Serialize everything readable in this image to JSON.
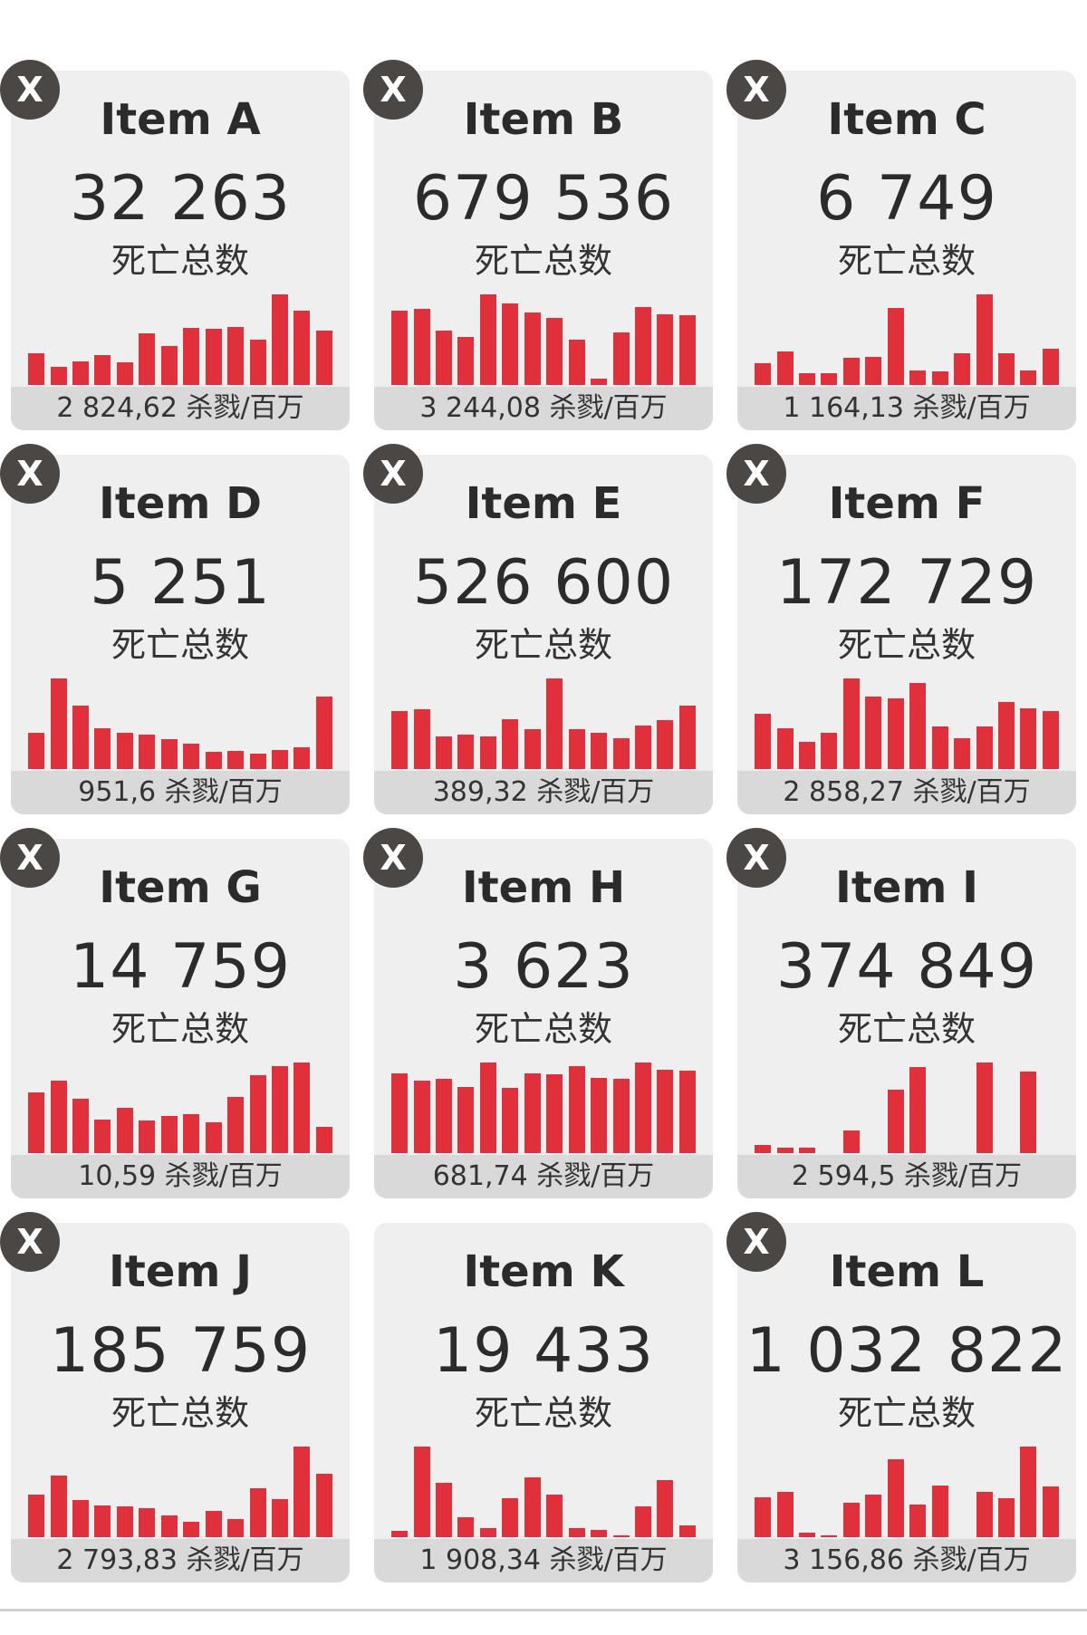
{
  "deaths_label": "死亡总数",
  "close_label": "X",
  "colors": {
    "bar": "#e0303c",
    "card": "#efefef",
    "footer": "#d9d9d9",
    "close": "#4a4744"
  },
  "cards": [
    {
      "country": "Item A",
      "deaths": "32 263",
      "per_million": "2 824,62 杀戮/百万",
      "closable": true,
      "bars": [
        0.35,
        0.2,
        0.26,
        0.33,
        0.25,
        0.57,
        0.43,
        0.63,
        0.62,
        0.64,
        0.5,
        1.0,
        0.82,
        0.6
      ]
    },
    {
      "country": "Item B",
      "deaths": "679 536",
      "per_million": "3 244,08 杀戮/百万",
      "closable": true,
      "bars": [
        0.82,
        0.84,
        0.6,
        0.53,
        1.0,
        0.9,
        0.8,
        0.74,
        0.5,
        0.07,
        0.58,
        0.86,
        0.78,
        0.77
      ]
    },
    {
      "country": "Item C",
      "deaths": "6 749",
      "per_million": "1 164,13 杀戮/百万",
      "closable": true,
      "bars": [
        0.24,
        0.37,
        0.13,
        0.13,
        0.3,
        0.31,
        0.85,
        0.16,
        0.15,
        0.35,
        1.0,
        0.35,
        0.16,
        0.4
      ]
    },
    {
      "country": "Item D",
      "deaths": "5 251",
      "per_million": "951,6 杀戮/百万",
      "closable": true,
      "bars": [
        0.4,
        1.0,
        0.7,
        0.45,
        0.4,
        0.38,
        0.33,
        0.28,
        0.19,
        0.2,
        0.17,
        0.21,
        0.24,
        0.8
      ]
    },
    {
      "country": "Item E",
      "deaths": "526 600",
      "per_million": "389,32 杀戮/百万",
      "closable": true,
      "bars": [
        0.64,
        0.66,
        0.36,
        0.38,
        0.36,
        0.55,
        0.44,
        1.0,
        0.44,
        0.4,
        0.34,
        0.48,
        0.54,
        0.7
      ]
    },
    {
      "country": "Item F",
      "deaths": "172 729",
      "per_million": "2 858,27 杀戮/百万",
      "closable": true,
      "bars": [
        0.61,
        0.45,
        0.3,
        0.4,
        1.0,
        0.8,
        0.78,
        0.95,
        0.47,
        0.34,
        0.47,
        0.74,
        0.67,
        0.64
      ]
    },
    {
      "country": "Item G",
      "deaths": "14 759",
      "per_million": "10,59 杀戮/百万",
      "closable": true,
      "bars": [
        0.67,
        0.8,
        0.6,
        0.37,
        0.5,
        0.36,
        0.41,
        0.43,
        0.34,
        0.62,
        0.86,
        0.96,
        1.0,
        0.29
      ]
    },
    {
      "country": "Item H",
      "deaths": "3 623",
      "per_million": "681,74 杀戮/百万",
      "closable": true,
      "bars": [
        0.88,
        0.8,
        0.82,
        0.73,
        1.0,
        0.72,
        0.88,
        0.87,
        0.96,
        0.83,
        0.82,
        1.0,
        0.92,
        0.91
      ]
    },
    {
      "country": "Item I",
      "deaths": "374 849",
      "per_million": "2 594,5 杀戮/百万",
      "closable": true,
      "bars": [
        0.09,
        0.06,
        0.06,
        0.0,
        0.25,
        0.0,
        0.7,
        0.95,
        0.0,
        0.0,
        1.0,
        0.0,
        0.9,
        0.0
      ]
    },
    {
      "country": "Item J",
      "deaths": "185 759",
      "per_million": "2 793,83 杀戮/百万",
      "closable": true,
      "bars": [
        0.47,
        0.68,
        0.41,
        0.35,
        0.34,
        0.32,
        0.24,
        0.17,
        0.29,
        0.2,
        0.54,
        0.42,
        1.0,
        0.7
      ]
    },
    {
      "country": "Item K",
      "deaths": "19 433",
      "per_million": "1 908,34 杀戮/百万",
      "closable": false,
      "bars": [
        0.07,
        1.0,
        0.6,
        0.22,
        0.1,
        0.43,
        0.66,
        0.47,
        0.1,
        0.08,
        0.02,
        0.34,
        0.63,
        0.13
      ]
    },
    {
      "country": "Item L",
      "deaths": "1 032 822",
      "per_million": "3 156,86 杀戮/百万",
      "closable": true,
      "bars": [
        0.44,
        0.5,
        0.05,
        0.02,
        0.38,
        0.47,
        0.86,
        0.36,
        0.57,
        0.0,
        0.5,
        0.43,
        1.0,
        0.56
      ]
    }
  ]
}
